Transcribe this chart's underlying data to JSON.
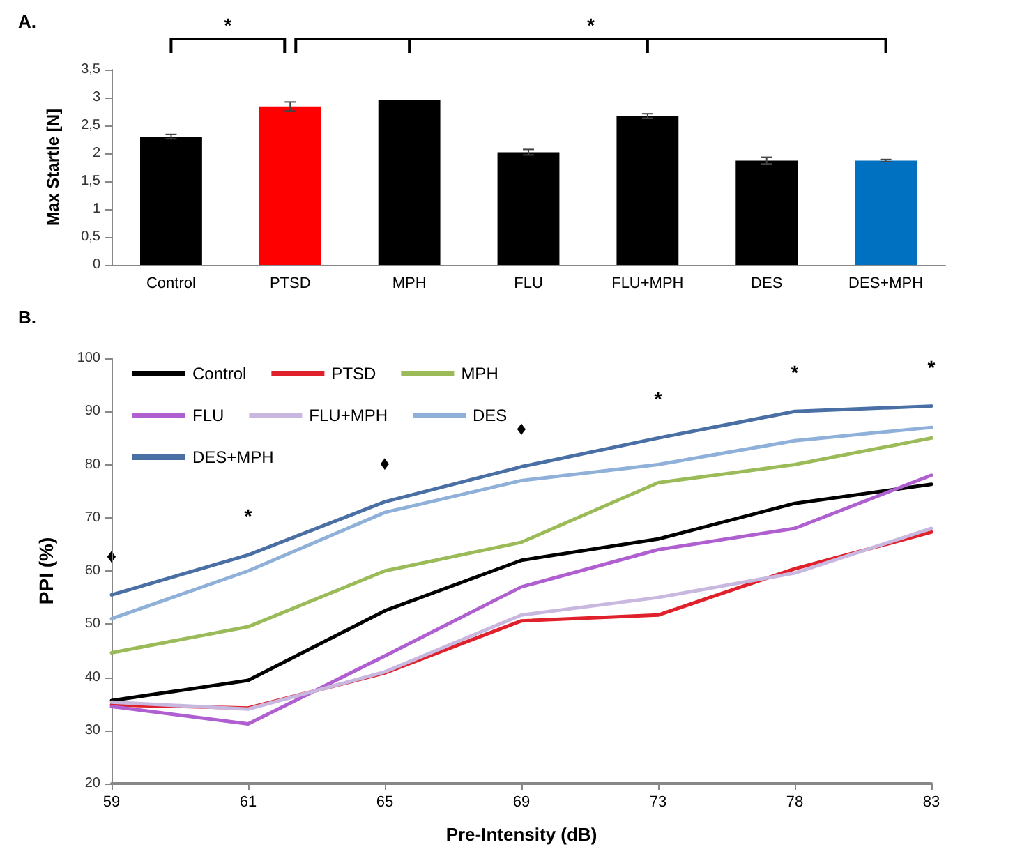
{
  "chart_data": [
    {
      "type": "bar",
      "title": "A.",
      "ylabel": "Max Startle [N]",
      "categories": [
        "Control",
        "PTSD",
        "MPH",
        "FLU",
        "FLU+MPH",
        "DES",
        "DES+MPH"
      ],
      "values": [
        2.3,
        2.84,
        2.95,
        2.02,
        2.67,
        1.87,
        1.87
      ],
      "errors": [
        0.04,
        0.08,
        null,
        0.05,
        0.04,
        0.06,
        0.02
      ],
      "colors": [
        "#000000",
        "#ff0000",
        "#000000",
        "#000000",
        "#000000",
        "#000000",
        "#0070c0"
      ],
      "ylim": [
        0,
        3.5
      ],
      "yticks": [
        0,
        {
          "value": 0.5,
          "label": "0,5"
        },
        1,
        {
          "value": 1.5,
          "label": "1,5"
        },
        2,
        {
          "value": 2.5,
          "label": "2,5"
        },
        3,
        {
          "value": 3.5,
          "label": "3,5"
        }
      ],
      "annotations": [
        "*",
        "*"
      ],
      "grid": false
    },
    {
      "type": "line",
      "title": "B.",
      "xlabel": "Pre-Intensity (dB)",
      "ylabel": "PPI (%)",
      "categories": [
        "59",
        "61",
        "65",
        "69",
        "73",
        "78",
        "83"
      ],
      "series": [
        {
          "name": "Control",
          "color": "#000000",
          "values": [
            35.6,
            39.4,
            52.5,
            62,
            66,
            72.7,
            76.3
          ]
        },
        {
          "name": "PTSD",
          "color": "#e0202a",
          "values": [
            34.8,
            34.2,
            40.8,
            50.6,
            51.7,
            60.4,
            67.3
          ]
        },
        {
          "name": "MPH",
          "color": "#9bbb59",
          "values": [
            44.6,
            49.5,
            60,
            65.4,
            76.6,
            80,
            85
          ]
        },
        {
          "name": "FLU",
          "color": "#b05fd0",
          "values": [
            34.5,
            31.2,
            44,
            57,
            64,
            68,
            78
          ]
        },
        {
          "name": "FLU+MPH",
          "color": "#c8b8e0",
          "values": [
            35.3,
            34,
            41,
            51.7,
            55,
            59.6,
            68
          ]
        },
        {
          "name": "DES",
          "color": "#8fb0d8",
          "values": [
            51,
            60,
            71,
            77,
            80,
            84.5,
            87
          ]
        },
        {
          "name": "DES+MPH",
          "color": "#4a6fa5",
          "values": [
            55.5,
            63,
            73,
            79.6,
            85,
            90,
            91
          ]
        }
      ],
      "ylim": [
        20,
        100
      ],
      "yticks": [
        20,
        30,
        40,
        50,
        60,
        70,
        80,
        90,
        100
      ],
      "annotations": [
        "♦",
        "*",
        "♦",
        "♦",
        "*",
        "*",
        "*"
      ],
      "legend": "top left",
      "grid": false,
      "marker": "none",
      "line_style": "solid"
    }
  ]
}
